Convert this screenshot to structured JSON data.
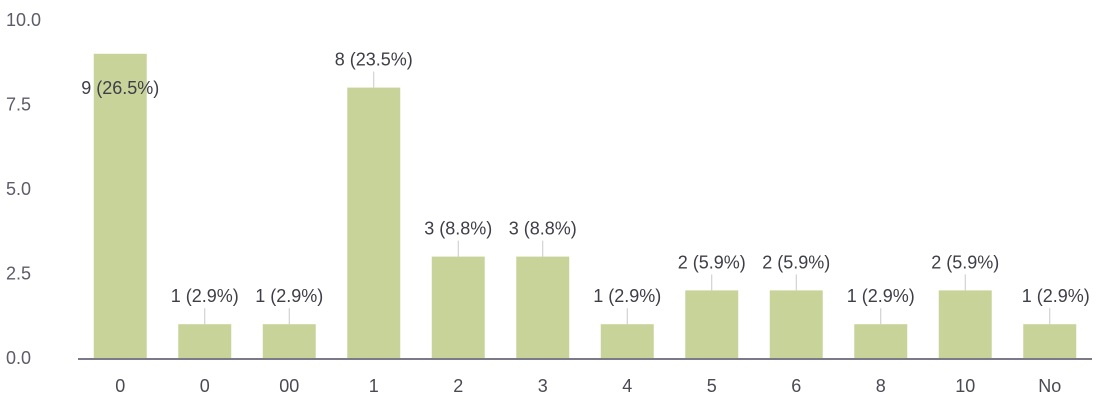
{
  "chart_data": {
    "type": "bar",
    "categories": [
      "0",
      "0",
      "00",
      "1",
      "2",
      "3",
      "4",
      "5",
      "6",
      "8",
      "10",
      "No"
    ],
    "values": [
      9,
      1,
      1,
      8,
      3,
      3,
      1,
      2,
      2,
      1,
      2,
      1
    ],
    "data_labels": [
      "9 (26.5%)",
      "1 (2.9%)",
      "1 (2.9%)",
      "8 (23.5%)",
      "3 (8.8%)",
      "3 (8.8%)",
      "1 (2.9%)",
      "2 (5.9%)",
      "2 (5.9%)",
      "1 (2.9%)",
      "2 (5.9%)",
      "1 (2.9%)"
    ],
    "y_ticks": [
      "0.0",
      "2.5",
      "5.0",
      "7.5",
      "10.0"
    ],
    "ylim": [
      0,
      10
    ],
    "grid": false,
    "bar_color": "#c8d39a",
    "title": "",
    "xlabel": "",
    "ylabel": ""
  }
}
